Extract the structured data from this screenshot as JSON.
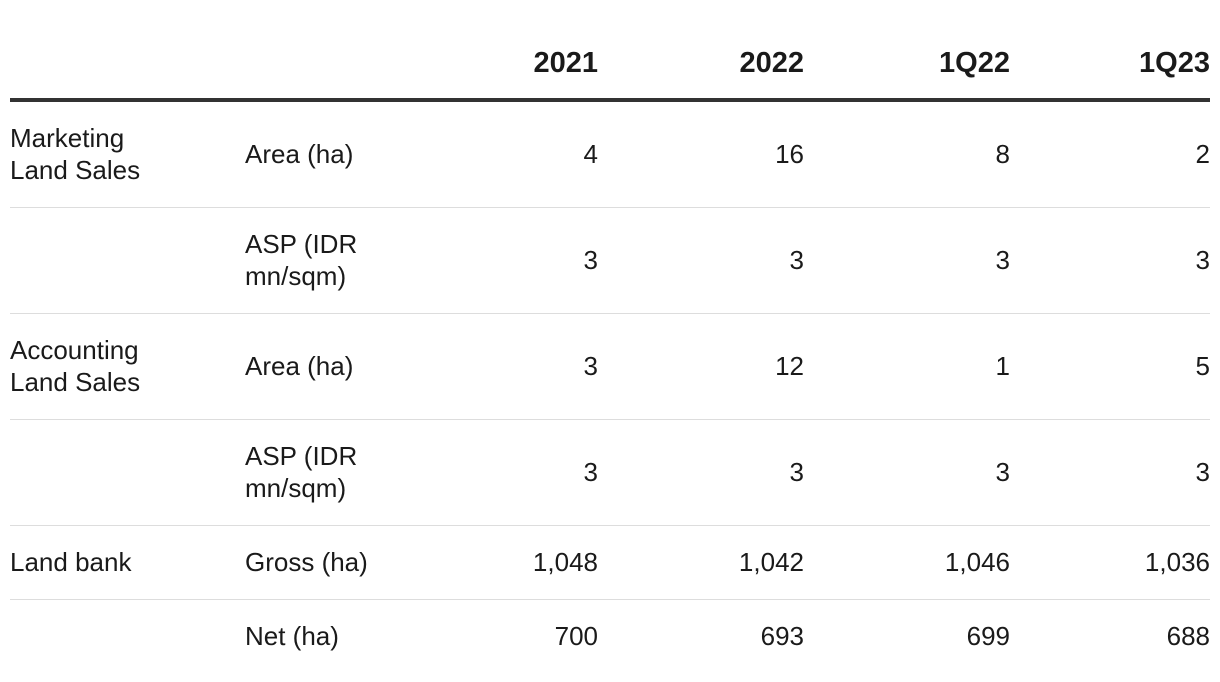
{
  "table": {
    "columns": [
      "2021",
      "2022",
      "1Q22",
      "1Q23"
    ],
    "rows": [
      {
        "group": "Marketing\nLand Sales",
        "metric": "Area (ha)",
        "values": [
          "4",
          "16",
          "8",
          "2"
        ]
      },
      {
        "group": "",
        "metric": "ASP (IDR\nmn/sqm)",
        "values": [
          "3",
          "3",
          "3",
          "3"
        ]
      },
      {
        "group": "Accounting\nLand Sales",
        "metric": "Area (ha)",
        "values": [
          "3",
          "12",
          "1",
          "5"
        ]
      },
      {
        "group": "",
        "metric": "ASP (IDR\nmn/sqm)",
        "values": [
          "3",
          "3",
          "3",
          "3"
        ]
      },
      {
        "group": "Land bank",
        "metric": "Gross (ha)",
        "values": [
          "1,048",
          "1,042",
          "1,046",
          "1,036"
        ]
      },
      {
        "group": "",
        "metric": "Net (ha)",
        "values": [
          "700",
          "693",
          "699",
          "688"
        ]
      }
    ]
  }
}
